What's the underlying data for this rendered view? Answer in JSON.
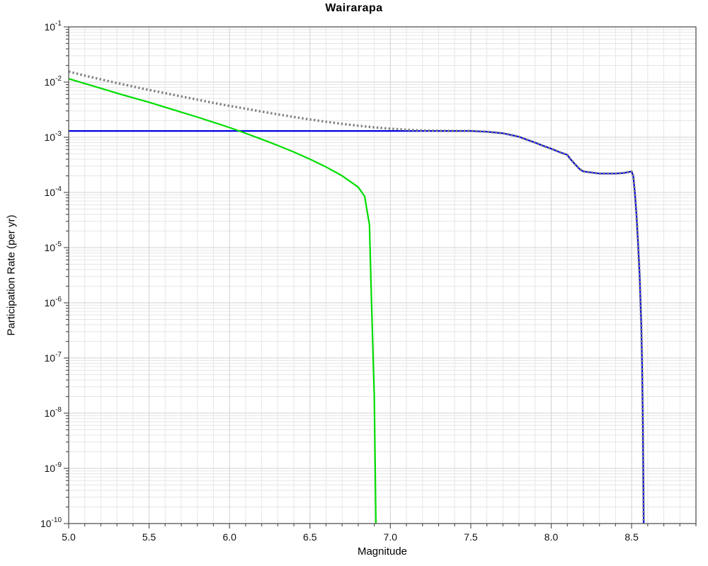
{
  "chart_data": {
    "type": "line",
    "title": "Wairarapa",
    "xlabel": "Magnitude",
    "ylabel": "Participation Rate (per yr)",
    "x_range": [
      5.0,
      8.9
    ],
    "y_log_range": [
      -10,
      -1
    ],
    "x_major_ticks": [
      5.0,
      5.5,
      6.0,
      6.5,
      7.0,
      7.5,
      8.0,
      8.5
    ],
    "x_minor_step": 0.1,
    "grid": true,
    "legend": "none",
    "background_color": "#ffffff",
    "series": [
      {
        "name": "blue-line",
        "color": "#0000e0",
        "style": "solid",
        "width": 2.2,
        "points": [
          [
            5.0,
            0.0013
          ],
          [
            7.5,
            0.0013
          ],
          [
            7.6,
            0.00126
          ],
          [
            7.7,
            0.00118
          ],
          [
            7.75,
            0.0011
          ],
          [
            7.8,
            0.00102
          ],
          [
            7.85,
            0.0009
          ],
          [
            7.9,
            0.0008
          ],
          [
            7.95,
            0.0007
          ],
          [
            8.0,
            0.00062
          ],
          [
            8.05,
            0.00054
          ],
          [
            8.1,
            0.00048
          ],
          [
            8.12,
            0.0004
          ],
          [
            8.15,
            0.00032
          ],
          [
            8.18,
            0.00026
          ],
          [
            8.2,
            0.00024
          ],
          [
            8.3,
            0.00022
          ],
          [
            8.4,
            0.00022
          ],
          [
            8.45,
            0.000225
          ],
          [
            8.5,
            0.00024
          ],
          [
            8.51,
            0.0002
          ],
          [
            8.52,
            0.0001
          ],
          [
            8.53,
            4e-05
          ],
          [
            8.54,
            1.2e-05
          ],
          [
            8.55,
            3e-06
          ],
          [
            8.56,
            4e-07
          ],
          [
            8.565,
            8e-08
          ],
          [
            8.57,
            6e-09
          ],
          [
            8.575,
            1e-10
          ]
        ]
      },
      {
        "name": "green-line",
        "color": "#00dd00",
        "style": "solid",
        "width": 2.2,
        "points": [
          [
            5.0,
            0.0115
          ],
          [
            5.1,
            0.0094
          ],
          [
            5.2,
            0.0077
          ],
          [
            5.3,
            0.0063
          ],
          [
            5.4,
            0.0052
          ],
          [
            5.5,
            0.0043
          ],
          [
            5.6,
            0.0035
          ],
          [
            5.7,
            0.00285
          ],
          [
            5.8,
            0.00232
          ],
          [
            5.9,
            0.00187
          ],
          [
            6.0,
            0.0015
          ],
          [
            6.1,
            0.00118
          ],
          [
            6.2,
            0.00092
          ],
          [
            6.3,
            0.00071
          ],
          [
            6.4,
            0.00054
          ],
          [
            6.5,
            0.0004
          ],
          [
            6.6,
            0.00029
          ],
          [
            6.7,
            0.0002
          ],
          [
            6.8,
            0.000125
          ],
          [
            6.84,
            8.5e-05
          ],
          [
            6.87,
            2.6e-05
          ],
          [
            6.88,
            2e-06
          ],
          [
            6.9,
            2e-08
          ],
          [
            6.91,
            1e-10
          ]
        ]
      },
      {
        "name": "gray-dotted-line",
        "color": "#828282",
        "style": "dotted",
        "width": 3.4,
        "points": [
          [
            5.0,
            0.0155
          ],
          [
            5.1,
            0.0131
          ],
          [
            5.2,
            0.0112
          ],
          [
            5.3,
            0.0096
          ],
          [
            5.4,
            0.0083
          ],
          [
            5.5,
            0.0072
          ],
          [
            5.6,
            0.0063
          ],
          [
            5.7,
            0.0055
          ],
          [
            5.8,
            0.0048
          ],
          [
            5.9,
            0.0042
          ],
          [
            6.0,
            0.0037
          ],
          [
            6.1,
            0.0033
          ],
          [
            6.2,
            0.00292
          ],
          [
            6.3,
            0.0026
          ],
          [
            6.4,
            0.00233
          ],
          [
            6.5,
            0.0021
          ],
          [
            6.6,
            0.00191
          ],
          [
            6.7,
            0.00175
          ],
          [
            6.8,
            0.00162
          ],
          [
            6.9,
            0.00151
          ],
          [
            7.0,
            0.00143
          ],
          [
            7.1,
            0.00137
          ],
          [
            7.2,
            0.00133
          ],
          [
            7.3,
            0.00131
          ],
          [
            7.4,
            0.0013
          ],
          [
            7.5,
            0.0013
          ],
          [
            7.6,
            0.00126
          ],
          [
            7.7,
            0.00118
          ],
          [
            7.75,
            0.0011
          ],
          [
            7.8,
            0.00102
          ],
          [
            7.85,
            0.0009
          ],
          [
            7.9,
            0.0008
          ],
          [
            7.95,
            0.0007
          ],
          [
            8.0,
            0.00062
          ],
          [
            8.05,
            0.00054
          ],
          [
            8.1,
            0.00048
          ],
          [
            8.12,
            0.0004
          ],
          [
            8.15,
            0.00032
          ],
          [
            8.18,
            0.00026
          ],
          [
            8.2,
            0.00024
          ],
          [
            8.3,
            0.00022
          ],
          [
            8.4,
            0.00022
          ],
          [
            8.45,
            0.000225
          ],
          [
            8.5,
            0.00024
          ],
          [
            8.51,
            0.0002
          ],
          [
            8.52,
            0.0001
          ],
          [
            8.53,
            4e-05
          ],
          [
            8.54,
            1.2e-05
          ],
          [
            8.55,
            3e-06
          ],
          [
            8.56,
            4e-07
          ],
          [
            8.565,
            8e-08
          ],
          [
            8.57,
            6e-09
          ],
          [
            8.575,
            1e-10
          ]
        ]
      }
    ]
  }
}
